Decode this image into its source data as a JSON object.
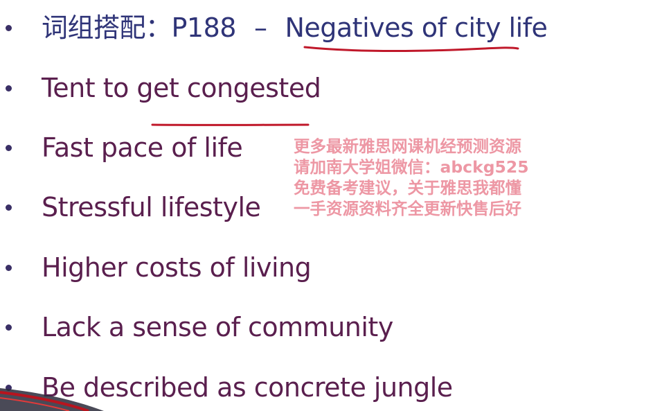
{
  "title": {
    "cn_prefix": "词组搭配：",
    "page_ref": "P188",
    "dash": "–",
    "topic": "Negatives of city life"
  },
  "bullets": [
    "Tent to get congested",
    "Fast pace of life",
    "Stressful lifestyle",
    "Higher costs of living",
    "Lack a sense of community",
    "Be described as concrete jungle"
  ],
  "watermark": {
    "lines": [
      "更多最新雅思网课机经预测资源",
      "请加南大学姐微信：abckg525",
      "免费备考建议，关于雅思我都懂",
      "一手资源资料齐全更新快售后好"
    ]
  },
  "colors": {
    "title_text": "#2f3478",
    "bullet_text": "#5a1f4e",
    "underline": "#c0182a",
    "watermark": "#e87a8a",
    "bullet_dot": "#3a2f66"
  }
}
